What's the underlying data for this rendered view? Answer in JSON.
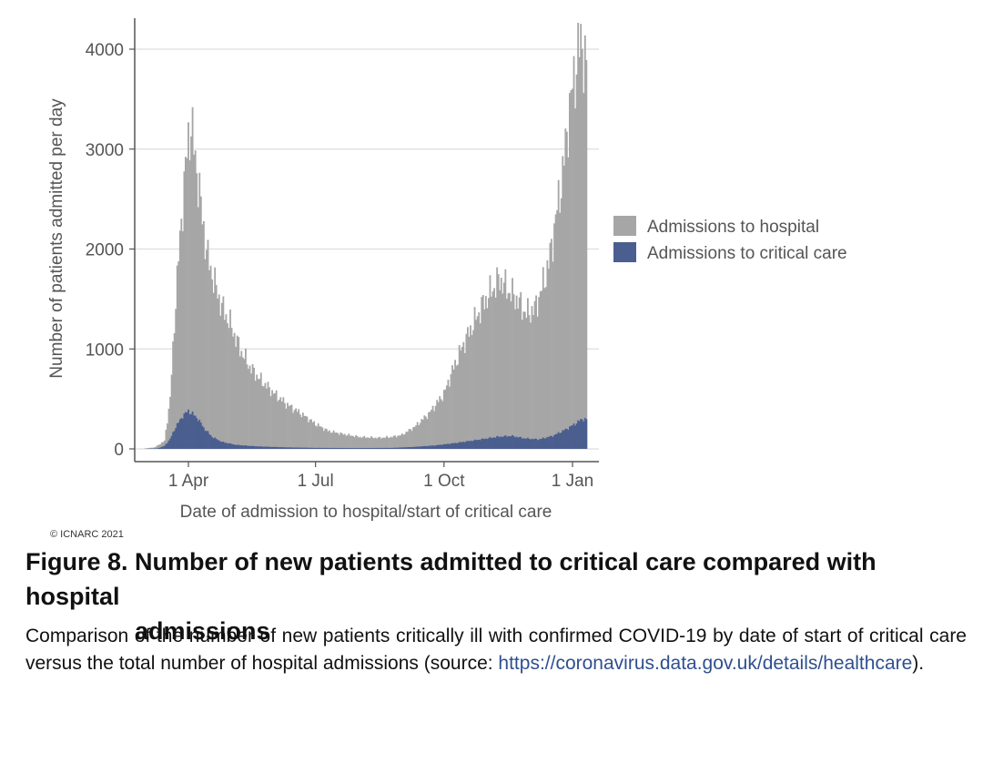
{
  "chart_data": {
    "type": "bar",
    "xlabel": "Date of admission to hospital/start of critical care",
    "ylabel": "Number of patients admitted per day",
    "ylim": [
      0,
      4200
    ],
    "yticks": [
      0,
      1000,
      2000,
      3000,
      4000
    ],
    "xticks": [
      {
        "date": "2020-04-01",
        "label": "1 Apr"
      },
      {
        "date": "2020-07-01",
        "label": "1 Jul"
      },
      {
        "date": "2020-10-01",
        "label": "1 Oct"
      },
      {
        "date": "2021-01-01",
        "label": "1 Jan"
      }
    ],
    "grid": "horizontal",
    "legend_position": "right",
    "colors": {
      "hospital": "#a6a6a6",
      "critical": "#4a5e8f",
      "grid": "#dedede",
      "axis": "#555555"
    },
    "series": [
      {
        "name": "Admissions to hospital",
        "points": [
          [
            "2020-03-01",
            5
          ],
          [
            "2020-03-08",
            15
          ],
          [
            "2020-03-15",
            80
          ],
          [
            "2020-03-19",
            500
          ],
          [
            "2020-03-21",
            1000
          ],
          [
            "2020-03-23",
            1500
          ],
          [
            "2020-03-26",
            2100
          ],
          [
            "2020-03-29",
            2650
          ],
          [
            "2020-04-01",
            3100
          ],
          [
            "2020-04-03",
            3250
          ],
          [
            "2020-04-05",
            3000
          ],
          [
            "2020-04-08",
            2700
          ],
          [
            "2020-04-11",
            2300
          ],
          [
            "2020-04-15",
            1900
          ],
          [
            "2020-04-20",
            1650
          ],
          [
            "2020-04-25",
            1420
          ],
          [
            "2020-05-01",
            1250
          ],
          [
            "2020-05-08",
            1000
          ],
          [
            "2020-05-15",
            820
          ],
          [
            "2020-05-22",
            700
          ],
          [
            "2020-06-01",
            560
          ],
          [
            "2020-06-10",
            450
          ],
          [
            "2020-06-20",
            360
          ],
          [
            "2020-07-01",
            250
          ],
          [
            "2020-07-10",
            180
          ],
          [
            "2020-07-20",
            150
          ],
          [
            "2020-08-01",
            120
          ],
          [
            "2020-08-15",
            110
          ],
          [
            "2020-08-25",
            120
          ],
          [
            "2020-09-01",
            140
          ],
          [
            "2020-09-10",
            220
          ],
          [
            "2020-09-20",
            350
          ],
          [
            "2020-10-01",
            550
          ],
          [
            "2020-10-07",
            780
          ],
          [
            "2020-10-15",
            1050
          ],
          [
            "2020-10-22",
            1250
          ],
          [
            "2020-10-29",
            1450
          ],
          [
            "2020-11-05",
            1600
          ],
          [
            "2020-11-10",
            1700
          ],
          [
            "2020-11-15",
            1600
          ],
          [
            "2020-11-22",
            1500
          ],
          [
            "2020-11-29",
            1350
          ],
          [
            "2020-12-05",
            1400
          ],
          [
            "2020-12-10",
            1600
          ],
          [
            "2020-12-15",
            1850
          ],
          [
            "2020-12-20",
            2300
          ],
          [
            "2020-12-25",
            2750
          ],
          [
            "2020-12-29",
            3300
          ],
          [
            "2021-01-02",
            3700
          ],
          [
            "2021-01-05",
            3950
          ],
          [
            "2021-01-08",
            4100
          ],
          [
            "2021-01-10",
            3850
          ],
          [
            "2021-01-11",
            3800
          ]
        ]
      },
      {
        "name": "Admissions to critical care",
        "points": [
          [
            "2020-03-01",
            0
          ],
          [
            "2020-03-10",
            5
          ],
          [
            "2020-03-15",
            30
          ],
          [
            "2020-03-19",
            100
          ],
          [
            "2020-03-23",
            220
          ],
          [
            "2020-03-28",
            330
          ],
          [
            "2020-04-01",
            380
          ],
          [
            "2020-04-04",
            350
          ],
          [
            "2020-04-08",
            300
          ],
          [
            "2020-04-12",
            210
          ],
          [
            "2020-04-18",
            120
          ],
          [
            "2020-04-25",
            70
          ],
          [
            "2020-05-05",
            40
          ],
          [
            "2020-05-20",
            25
          ],
          [
            "2020-06-10",
            15
          ],
          [
            "2020-07-01",
            10
          ],
          [
            "2020-08-01",
            8
          ],
          [
            "2020-08-25",
            10
          ],
          [
            "2020-09-10",
            20
          ],
          [
            "2020-09-25",
            35
          ],
          [
            "2020-10-10",
            60
          ],
          [
            "2020-10-25",
            90
          ],
          [
            "2020-11-08",
            120
          ],
          [
            "2020-11-18",
            130
          ],
          [
            "2020-11-28",
            105
          ],
          [
            "2020-12-08",
            95
          ],
          [
            "2020-12-18",
            130
          ],
          [
            "2020-12-28",
            200
          ],
          [
            "2021-01-04",
            260
          ],
          [
            "2021-01-08",
            300
          ],
          [
            "2021-01-11",
            290
          ]
        ]
      }
    ]
  },
  "copyright": "© ICNARC 2021",
  "figure": {
    "number": "Figure 8.",
    "title_line1": "Number of new patients admitted to critical care compared with hospital",
    "title_line2": "admissions"
  },
  "description": {
    "text": "Comparison of the number of new patients critically ill with confirmed COVID-19 by date of start of critical care versus the total number of hospital admissions (source: ",
    "link": "https://coronavirus.data.gov.uk/details/healthcare",
    "suffix": ")."
  }
}
